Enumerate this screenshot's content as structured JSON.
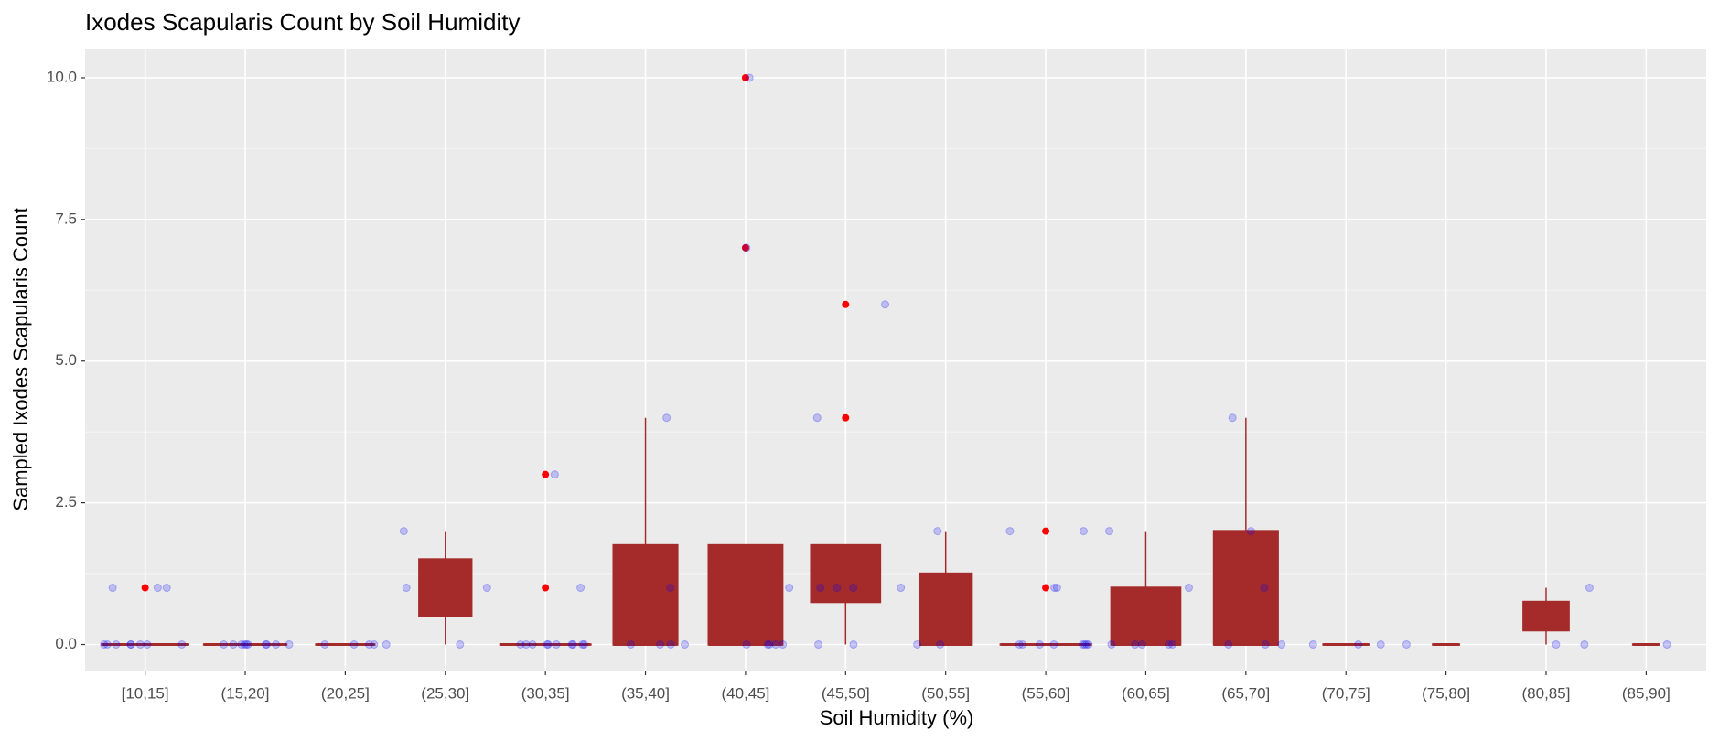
{
  "chart_data": {
    "type": "boxplot",
    "title": "Ixodes Scapularis Count by Soil Humidity",
    "x_label": "Soil Humidity (%)",
    "y_label": "Sampled Ixodes Scapularis Count",
    "categories": [
      "[10,15]",
      "(15,20]",
      "(20,25]",
      "(25,30]",
      "(30,35]",
      "(35,40]",
      "(40,45]",
      "(45,50]",
      "(50,55]",
      "(55,60]",
      "(60,65]",
      "(65,70]",
      "(70,75]",
      "(75,80]",
      "(80,85]",
      "(85,90]"
    ],
    "box_color": "#a52a2a",
    "outlier_color": "#ff0000",
    "point_color": "#0000ff",
    "grid": true,
    "ylim": [
      -0.46,
      10.5
    ],
    "yticks": [
      {
        "value": 0,
        "label": "0.0"
      },
      {
        "value": 2.5,
        "label": "2.5"
      },
      {
        "value": 5,
        "label": "5.0"
      },
      {
        "value": 7.5,
        "label": "7.5"
      },
      {
        "value": 10,
        "label": "10.0"
      }
    ],
    "minor_yticks": [
      1.25,
      3.75,
      6.25,
      8.75
    ],
    "boxes": [
      {
        "low": 0,
        "q1": 0,
        "median": 0,
        "q3": 0,
        "high": 0,
        "outliers": [
          1
        ],
        "points": [
          1,
          0,
          0,
          0,
          0,
          1,
          0,
          0,
          0,
          1,
          0
        ]
      },
      {
        "low": 0,
        "q1": 0,
        "median": 0,
        "q3": 0,
        "high": 0,
        "outliers": [],
        "points": [
          0,
          0,
          0,
          0,
          0,
          0,
          0,
          0,
          0,
          0
        ]
      },
      {
        "low": 0,
        "q1": 0,
        "median": 0,
        "q3": 0,
        "high": 0,
        "outliers": [],
        "points": [
          0,
          0,
          0,
          0,
          0
        ]
      },
      {
        "low": 0,
        "q1": 0.5,
        "median": 1,
        "q3": 1.5,
        "high": 2,
        "outliers": [],
        "points": [
          0,
          2,
          1,
          1
        ]
      },
      {
        "low": 0,
        "q1": 0,
        "median": 0,
        "q3": 0,
        "high": 0,
        "outliers": [
          3,
          1
        ],
        "points": [
          3,
          1,
          0,
          0,
          0,
          0,
          0,
          0,
          0,
          0,
          0,
          0
        ]
      },
      {
        "low": 0,
        "q1": 0,
        "median": 0,
        "q3": 1.75,
        "high": 4,
        "outliers": [],
        "points": [
          0,
          1,
          4,
          0,
          0,
          0
        ]
      },
      {
        "low": 0,
        "q1": 0,
        "median": 0,
        "q3": 1.75,
        "high": 1.75,
        "outliers": [
          10,
          7
        ],
        "points": [
          7,
          0,
          0,
          0,
          10,
          1,
          0,
          0
        ]
      },
      {
        "low": 0,
        "q1": 0.75,
        "median": 1,
        "q3": 1.75,
        "high": 1.75,
        "outliers": [
          6,
          4
        ],
        "points": [
          6,
          0,
          1,
          1,
          4,
          1,
          0
        ]
      },
      {
        "low": 0,
        "q1": 0,
        "median": 0,
        "q3": 1.25,
        "high": 2,
        "outliers": [],
        "points": [
          0,
          1,
          2,
          0
        ]
      },
      {
        "low": 0,
        "q1": 0,
        "median": 0,
        "q3": 0,
        "high": 0,
        "outliers": [
          2,
          1
        ],
        "points": [
          1,
          0,
          0,
          0,
          0,
          0,
          0,
          0,
          2,
          2,
          1,
          0
        ]
      },
      {
        "low": 0,
        "q1": 0,
        "median": 0,
        "q3": 1,
        "high": 2,
        "outliers": [],
        "points": [
          0,
          0,
          0,
          0,
          2,
          1,
          0
        ]
      },
      {
        "low": 0,
        "q1": 0,
        "median": 0,
        "q3": 2,
        "high": 4,
        "outliers": [],
        "points": [
          0,
          1,
          4,
          2,
          0,
          0
        ]
      },
      {
        "low": 0,
        "q1": 0,
        "median": 0,
        "q3": 0,
        "high": 0,
        "outliers": [],
        "points": [
          0,
          0,
          0
        ]
      },
      {
        "low": 0,
        "q1": 0,
        "median": 0,
        "q3": 0,
        "high": 0,
        "outliers": [],
        "points": [
          0
        ]
      },
      {
        "low": 0,
        "q1": 0.25,
        "median": 0.5,
        "q3": 0.75,
        "high": 1,
        "outliers": [],
        "points": [
          1,
          0,
          0
        ]
      },
      {
        "low": 0,
        "q1": 0,
        "median": 0,
        "q3": 0,
        "high": 0,
        "outliers": [],
        "points": [
          0
        ]
      }
    ]
  }
}
